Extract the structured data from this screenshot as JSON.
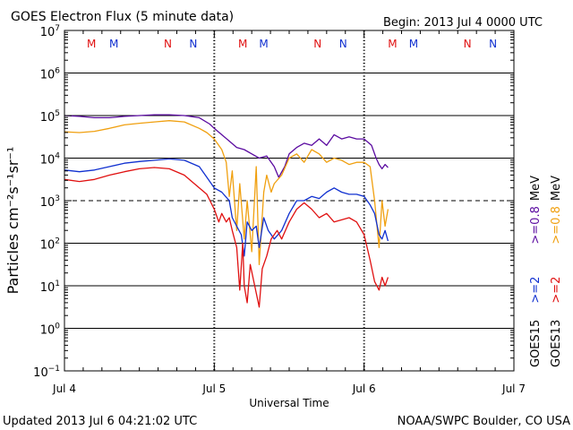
{
  "chart_data": {
    "type": "line",
    "title": "GOES Electron Flux (5 minute data)",
    "begin_text": "Begin: 2013 Jul 4 0000 UTC",
    "xlabel": "Universal Time",
    "ylabel": "Particles cm⁻²s⁻¹sr⁻¹",
    "x_unit": "days since 2013 Jul 4 0000 UTC",
    "xlim": [
      0,
      3
    ],
    "ylim_log10": [
      -1,
      7
    ],
    "x_ticks": [
      {
        "x": 0,
        "label": "Jul 4"
      },
      {
        "x": 1,
        "label": "Jul 5"
      },
      {
        "x": 2,
        "label": "Jul 6"
      },
      {
        "x": 3,
        "label": "Jul 7"
      }
    ],
    "y_ticks": [
      {
        "exp": 7,
        "label": "10",
        "sup": "7"
      },
      {
        "exp": 6,
        "label": "10",
        "sup": "6"
      },
      {
        "exp": 5,
        "label": "10",
        "sup": "5"
      },
      {
        "exp": 4,
        "label": "10",
        "sup": "4"
      },
      {
        "exp": 3,
        "label": "10",
        "sup": "3"
      },
      {
        "exp": 2,
        "label": "10",
        "sup": "2"
      },
      {
        "exp": 1,
        "label": "10",
        "sup": "1"
      },
      {
        "exp": 0,
        "label": "10",
        "sup": "0"
      },
      {
        "exp": -1,
        "label": "10",
        "sup": "−1"
      }
    ],
    "solid_gridlines_exp": [
      6,
      5,
      4,
      2,
      1,
      0
    ],
    "threshold": {
      "exp": 3,
      "style": "dashed"
    },
    "day_markers": [
      1,
      2
    ],
    "marker_labels": [
      {
        "x": 0.18,
        "text": "M",
        "color": "#e01010"
      },
      {
        "x": 0.33,
        "text": "M",
        "color": "#1030d0"
      },
      {
        "x": 0.69,
        "text": "N",
        "color": "#e01010"
      },
      {
        "x": 0.86,
        "text": "N",
        "color": "#1030d0"
      },
      {
        "x": 1.19,
        "text": "M",
        "color": "#e01010"
      },
      {
        "x": 1.33,
        "text": "M",
        "color": "#1030d0"
      },
      {
        "x": 1.69,
        "text": "N",
        "color": "#e01010"
      },
      {
        "x": 1.86,
        "text": "N",
        "color": "#1030d0"
      },
      {
        "x": 2.19,
        "text": "M",
        "color": "#e01010"
      },
      {
        "x": 2.33,
        "text": "M",
        "color": "#1030d0"
      },
      {
        "x": 2.69,
        "text": "N",
        "color": "#e01010"
      },
      {
        "x": 2.86,
        "text": "N",
        "color": "#1030d0"
      }
    ],
    "series": [
      {
        "name": "GOES15 >=0.8 MeV",
        "color": "#5a0aa0",
        "points": [
          [
            0,
            5.0
          ],
          [
            0.1,
            4.98
          ],
          [
            0.2,
            4.95
          ],
          [
            0.3,
            4.95
          ],
          [
            0.4,
            4.98
          ],
          [
            0.5,
            5.0
          ],
          [
            0.6,
            5.02
          ],
          [
            0.7,
            5.02
          ],
          [
            0.8,
            5.0
          ],
          [
            0.9,
            4.95
          ],
          [
            0.97,
            4.8
          ],
          [
            1.0,
            4.7
          ],
          [
            1.05,
            4.55
          ],
          [
            1.1,
            4.4
          ],
          [
            1.15,
            4.25
          ],
          [
            1.2,
            4.2
          ],
          [
            1.25,
            4.1
          ],
          [
            1.3,
            4.0
          ],
          [
            1.35,
            4.05
          ],
          [
            1.4,
            3.8
          ],
          [
            1.43,
            3.55
          ],
          [
            1.47,
            3.8
          ],
          [
            1.5,
            4.1
          ],
          [
            1.55,
            4.25
          ],
          [
            1.6,
            4.35
          ],
          [
            1.65,
            4.3
          ],
          [
            1.7,
            4.45
          ],
          [
            1.75,
            4.3
          ],
          [
            1.8,
            4.55
          ],
          [
            1.85,
            4.45
          ],
          [
            1.9,
            4.5
          ],
          [
            1.95,
            4.45
          ],
          [
            2.0,
            4.45
          ],
          [
            2.05,
            4.3
          ],
          [
            2.08,
            4.0
          ],
          [
            2.1,
            3.85
          ],
          [
            2.12,
            3.75
          ],
          [
            2.14,
            3.85
          ],
          [
            2.16,
            3.78
          ]
        ]
      },
      {
        "name": "GOES13 >=0.8 MeV",
        "color": "#f0a010",
        "points": [
          [
            0,
            4.62
          ],
          [
            0.1,
            4.6
          ],
          [
            0.2,
            4.63
          ],
          [
            0.3,
            4.7
          ],
          [
            0.4,
            4.78
          ],
          [
            0.5,
            4.82
          ],
          [
            0.6,
            4.85
          ],
          [
            0.7,
            4.88
          ],
          [
            0.8,
            4.85
          ],
          [
            0.9,
            4.7
          ],
          [
            0.95,
            4.6
          ],
          [
            1.0,
            4.45
          ],
          [
            1.05,
            4.2
          ],
          [
            1.08,
            3.9
          ],
          [
            1.1,
            3.1
          ],
          [
            1.12,
            3.7
          ],
          [
            1.15,
            2.3
          ],
          [
            1.17,
            3.4
          ],
          [
            1.2,
            2.1
          ],
          [
            1.22,
            3.0
          ],
          [
            1.25,
            1.8
          ],
          [
            1.28,
            3.8
          ],
          [
            1.3,
            1.5
          ],
          [
            1.33,
            3.2
          ],
          [
            1.35,
            3.6
          ],
          [
            1.38,
            3.2
          ],
          [
            1.4,
            3.4
          ],
          [
            1.45,
            3.6
          ],
          [
            1.5,
            4.0
          ],
          [
            1.55,
            4.1
          ],
          [
            1.6,
            3.9
          ],
          [
            1.65,
            4.2
          ],
          [
            1.7,
            4.1
          ],
          [
            1.75,
            3.9
          ],
          [
            1.8,
            4.0
          ],
          [
            1.85,
            3.95
          ],
          [
            1.9,
            3.85
          ],
          [
            1.95,
            3.9
          ],
          [
            2.0,
            3.9
          ],
          [
            2.04,
            3.8
          ],
          [
            2.07,
            3.0
          ],
          [
            2.1,
            1.9
          ],
          [
            2.12,
            3.0
          ],
          [
            2.14,
            2.4
          ],
          [
            2.16,
            2.8
          ]
        ]
      },
      {
        "name": "GOES15 >=2 MeV",
        "color": "#1030d0",
        "points": [
          [
            0,
            3.72
          ],
          [
            0.1,
            3.68
          ],
          [
            0.2,
            3.72
          ],
          [
            0.3,
            3.8
          ],
          [
            0.4,
            3.88
          ],
          [
            0.5,
            3.92
          ],
          [
            0.6,
            3.95
          ],
          [
            0.7,
            3.98
          ],
          [
            0.8,
            3.95
          ],
          [
            0.9,
            3.8
          ],
          [
            0.95,
            3.55
          ],
          [
            1.0,
            3.3
          ],
          [
            1.05,
            3.2
          ],
          [
            1.1,
            3.0
          ],
          [
            1.12,
            2.6
          ],
          [
            1.15,
            2.4
          ],
          [
            1.18,
            2.2
          ],
          [
            1.2,
            1.7
          ],
          [
            1.22,
            2.5
          ],
          [
            1.25,
            2.3
          ],
          [
            1.28,
            2.4
          ],
          [
            1.3,
            1.9
          ],
          [
            1.33,
            2.6
          ],
          [
            1.36,
            2.3
          ],
          [
            1.4,
            2.1
          ],
          [
            1.45,
            2.3
          ],
          [
            1.5,
            2.7
          ],
          [
            1.55,
            3.0
          ],
          [
            1.6,
            3.0
          ],
          [
            1.65,
            3.1
          ],
          [
            1.7,
            3.05
          ],
          [
            1.75,
            3.2
          ],
          [
            1.8,
            3.3
          ],
          [
            1.85,
            3.2
          ],
          [
            1.9,
            3.15
          ],
          [
            1.95,
            3.15
          ],
          [
            2.0,
            3.1
          ],
          [
            2.04,
            2.9
          ],
          [
            2.07,
            2.7
          ],
          [
            2.1,
            2.2
          ],
          [
            2.12,
            2.1
          ],
          [
            2.14,
            2.3
          ],
          [
            2.16,
            2.05
          ]
        ]
      },
      {
        "name": "GOES13 >=2 MeV",
        "color": "#e01010",
        "points": [
          [
            0,
            3.5
          ],
          [
            0.1,
            3.45
          ],
          [
            0.2,
            3.5
          ],
          [
            0.3,
            3.6
          ],
          [
            0.4,
            3.68
          ],
          [
            0.5,
            3.75
          ],
          [
            0.6,
            3.78
          ],
          [
            0.7,
            3.75
          ],
          [
            0.8,
            3.6
          ],
          [
            0.85,
            3.45
          ],
          [
            0.9,
            3.3
          ],
          [
            0.95,
            3.15
          ],
          [
            1.0,
            2.8
          ],
          [
            1.03,
            2.5
          ],
          [
            1.05,
            2.7
          ],
          [
            1.08,
            2.5
          ],
          [
            1.1,
            2.6
          ],
          [
            1.12,
            2.3
          ],
          [
            1.15,
            1.9
          ],
          [
            1.17,
            0.9
          ],
          [
            1.19,
            2.0
          ],
          [
            1.2,
            1.0
          ],
          [
            1.22,
            0.6
          ],
          [
            1.24,
            1.5
          ],
          [
            1.27,
            1.0
          ],
          [
            1.3,
            0.5
          ],
          [
            1.32,
            1.4
          ],
          [
            1.35,
            1.7
          ],
          [
            1.38,
            2.1
          ],
          [
            1.42,
            2.3
          ],
          [
            1.45,
            2.1
          ],
          [
            1.5,
            2.5
          ],
          [
            1.55,
            2.8
          ],
          [
            1.6,
            2.95
          ],
          [
            1.65,
            2.8
          ],
          [
            1.7,
            2.6
          ],
          [
            1.75,
            2.7
          ],
          [
            1.8,
            2.5
          ],
          [
            1.85,
            2.55
          ],
          [
            1.9,
            2.6
          ],
          [
            1.95,
            2.5
          ],
          [
            2.0,
            2.2
          ],
          [
            2.04,
            1.6
          ],
          [
            2.07,
            1.1
          ],
          [
            2.1,
            0.9
          ],
          [
            2.12,
            1.2
          ],
          [
            2.14,
            1.0
          ],
          [
            2.16,
            1.2
          ]
        ]
      }
    ],
    "legend": [
      {
        "satellite": "GOES15",
        "items": [
          {
            "text": ">=2",
            "color": "#1030d0"
          },
          {
            "text": ">=0.8",
            "color": "#5a0aa0"
          }
        ]
      },
      {
        "satellite": "GOES13",
        "items": [
          {
            "text": ">=2",
            "color": "#e01010"
          },
          {
            "text": ">=0.8",
            "color": "#f0a010"
          }
        ]
      }
    ],
    "legend_unit": "MeV"
  },
  "footer": {
    "updated": "Updated 2013 Jul  6 04:21:02 UTC",
    "credit": "NOAA/SWPC Boulder, CO USA"
  }
}
